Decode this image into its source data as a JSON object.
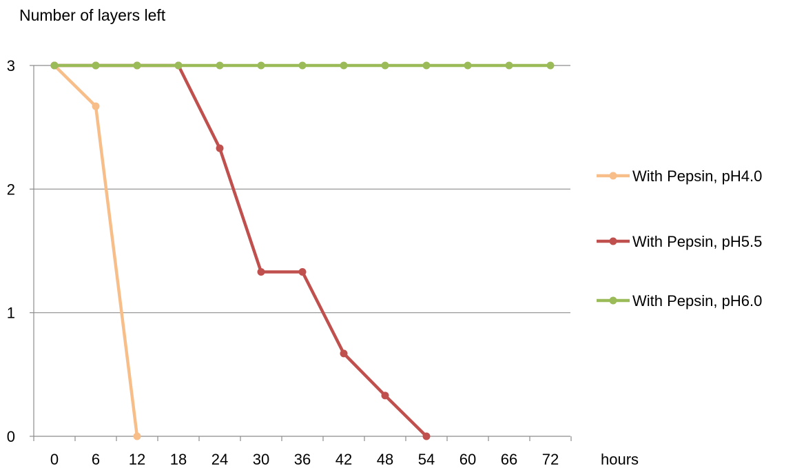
{
  "chart_data": {
    "type": "line",
    "title": "",
    "ylabel": "Number of layers left",
    "xlabel": "hours",
    "x": [
      0,
      6,
      12,
      18,
      24,
      30,
      36,
      42,
      48,
      54,
      60,
      66,
      72
    ],
    "ylim": [
      0,
      3
    ],
    "yticks": [
      0,
      1,
      2,
      3
    ],
    "grid": true,
    "legend_position": "right",
    "series": [
      {
        "name": "With Pepsin, pH4.0",
        "color": "#F8BE8A",
        "points": [
          [
            0,
            3
          ],
          [
            6,
            2.67
          ],
          [
            12,
            0
          ]
        ]
      },
      {
        "name": "With Pepsin, pH5.5",
        "color": "#C0504D",
        "points": [
          [
            0,
            3
          ],
          [
            6,
            3
          ],
          [
            12,
            3
          ],
          [
            18,
            3
          ],
          [
            24,
            2.33
          ],
          [
            30,
            1.33
          ],
          [
            36,
            1.33
          ],
          [
            42,
            0.67
          ],
          [
            48,
            0.33
          ],
          [
            54,
            0
          ]
        ]
      },
      {
        "name": "With Pepsin, pH6.0",
        "color": "#9BBB59",
        "points": [
          [
            0,
            3
          ],
          [
            6,
            3
          ],
          [
            12,
            3
          ],
          [
            18,
            3
          ],
          [
            24,
            3
          ],
          [
            30,
            3
          ],
          [
            36,
            3
          ],
          [
            42,
            3
          ],
          [
            48,
            3
          ],
          [
            54,
            3
          ],
          [
            60,
            3
          ],
          [
            66,
            3
          ],
          [
            72,
            3
          ]
        ]
      }
    ]
  }
}
